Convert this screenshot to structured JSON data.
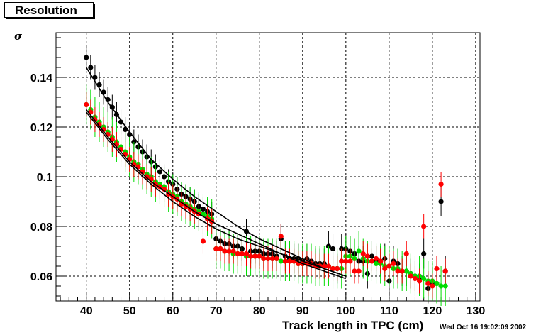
{
  "title": "Resolution",
  "stamp": "Wed Oct 16 19:02:09 2002",
  "chart_data": {
    "type": "scatter",
    "xlabel": "Track length in TPC (cm)",
    "ylabel": "σ",
    "xlim": [
      33,
      131
    ],
    "ylim": [
      0.05,
      0.158
    ],
    "grid": true,
    "x_ticks": [
      40,
      50,
      60,
      70,
      80,
      90,
      100,
      110,
      120,
      130
    ],
    "y_ticks": [
      0.06,
      0.08,
      0.1,
      0.12,
      0.14
    ],
    "y_tick_labels": [
      "0.06",
      "0.08",
      "0.1",
      "0.12",
      "0.14"
    ],
    "series": [
      {
        "color": "#000000",
        "x": [
          40,
          41,
          42,
          43,
          44,
          45,
          46,
          47,
          48,
          49,
          50,
          51,
          52,
          53,
          54,
          55,
          56,
          57,
          58,
          59,
          60,
          61,
          62,
          63,
          64,
          65,
          66,
          67,
          68,
          69,
          70,
          71,
          72,
          73,
          74,
          75,
          76,
          77,
          78,
          79,
          80,
          81,
          82,
          83,
          84,
          85,
          86,
          87,
          88,
          89,
          90,
          91,
          92,
          93,
          94,
          95,
          96,
          97,
          98,
          99,
          100,
          101,
          102,
          103,
          104,
          105,
          106,
          107,
          108,
          109,
          110,
          111,
          112,
          113,
          114,
          115,
          116,
          117,
          118,
          119,
          120,
          121,
          122,
          123
        ],
        "y": [
          0.148,
          0.144,
          0.14,
          0.137,
          0.134,
          0.131,
          0.128,
          0.125,
          0.122,
          0.119,
          0.117,
          0.114,
          0.112,
          0.11,
          0.108,
          0.106,
          0.104,
          0.102,
          0.1,
          0.098,
          0.097,
          0.095,
          0.093,
          0.092,
          0.091,
          0.09,
          0.088,
          0.087,
          0.086,
          0.085,
          0.075,
          0.074,
          0.073,
          0.073,
          0.072,
          0.072,
          0.071,
          0.078,
          0.07,
          0.07,
          0.07,
          0.069,
          0.069,
          0.069,
          0.068,
          0.075,
          0.068,
          0.067,
          0.067,
          0.067,
          0.066,
          0.067,
          0.066,
          0.065,
          0.065,
          0.065,
          0.072,
          0.071,
          0.063,
          0.071,
          0.071,
          0.07,
          0.069,
          0.066,
          0.066,
          0.061,
          0.068,
          0.066,
          0.066,
          0.067,
          0.058,
          0.066,
          0.065,
          0.062,
          0.062,
          0.061,
          0.06,
          0.059,
          0.069,
          0.055,
          0.057,
          0.057,
          0.09,
          0.062
        ],
        "err": [
          0.005,
          0.005,
          0.005,
          0.005,
          0.005,
          0.005,
          0.005,
          0.005,
          0.005,
          0.005,
          0.005,
          0.005,
          0.005,
          0.005,
          0.005,
          0.005,
          0.005,
          0.005,
          0.005,
          0.005,
          0.005,
          0.005,
          0.005,
          0.005,
          0.005,
          0.005,
          0.005,
          0.005,
          0.005,
          0.005,
          0.005,
          0.005,
          0.005,
          0.005,
          0.005,
          0.005,
          0.005,
          0.005,
          0.005,
          0.005,
          0.006,
          0.006,
          0.006,
          0.006,
          0.006,
          0.006,
          0.006,
          0.006,
          0.006,
          0.006,
          0.006,
          0.006,
          0.006,
          0.006,
          0.006,
          0.006,
          0.006,
          0.006,
          0.006,
          0.006,
          0.006,
          0.006,
          0.006,
          0.006,
          0.006,
          0.006,
          0.006,
          0.006,
          0.006,
          0.006,
          0.006,
          0.006,
          0.006,
          0.006,
          0.006,
          0.006,
          0.006,
          0.006,
          0.006,
          0.006,
          0.006,
          0.006,
          0.006,
          0.006
        ]
      },
      {
        "color": "#00dd00",
        "x": [
          40,
          41,
          42,
          43,
          44,
          45,
          46,
          47,
          48,
          49,
          50,
          51,
          52,
          53,
          54,
          55,
          56,
          57,
          58,
          59,
          60,
          61,
          62,
          63,
          64,
          65,
          66,
          67,
          68,
          69,
          70,
          71,
          72,
          73,
          74,
          75,
          76,
          77,
          78,
          79,
          80,
          81,
          82,
          83,
          84,
          85,
          86,
          87,
          88,
          89,
          90,
          91,
          92,
          93,
          94,
          95,
          96,
          97,
          98,
          99,
          100,
          101,
          102,
          103,
          104,
          105,
          106,
          107,
          108,
          109,
          110,
          111,
          112,
          113,
          114,
          115,
          116,
          117,
          118,
          119,
          120,
          121,
          122,
          123
        ],
        "y": [
          0.129,
          0.127,
          0.124,
          0.122,
          0.12,
          0.118,
          0.116,
          0.114,
          0.112,
          0.11,
          0.108,
          0.106,
          0.105,
          0.103,
          0.101,
          0.1,
          0.098,
          0.097,
          0.096,
          0.094,
          0.093,
          0.092,
          0.09,
          0.089,
          0.088,
          0.087,
          0.086,
          0.085,
          0.084,
          0.083,
          0.071,
          0.071,
          0.07,
          0.07,
          0.069,
          0.069,
          0.069,
          0.068,
          0.068,
          0.068,
          0.068,
          0.067,
          0.067,
          0.067,
          0.067,
          0.066,
          0.066,
          0.066,
          0.066,
          0.065,
          0.065,
          0.065,
          0.065,
          0.064,
          0.064,
          0.064,
          0.064,
          0.063,
          0.063,
          0.063,
          0.068,
          0.068,
          0.067,
          0.07,
          0.067,
          0.066,
          0.066,
          0.065,
          0.065,
          0.064,
          0.064,
          0.063,
          0.063,
          0.062,
          0.062,
          0.061,
          0.06,
          0.06,
          0.059,
          0.058,
          0.058,
          0.057,
          0.056,
          0.056
        ],
        "err": [
          0.008,
          0.008,
          0.008,
          0.008,
          0.008,
          0.008,
          0.008,
          0.008,
          0.008,
          0.008,
          0.008,
          0.008,
          0.008,
          0.008,
          0.008,
          0.008,
          0.008,
          0.008,
          0.008,
          0.008,
          0.008,
          0.008,
          0.008,
          0.008,
          0.008,
          0.008,
          0.008,
          0.008,
          0.008,
          0.008,
          0.008,
          0.008,
          0.008,
          0.008,
          0.008,
          0.008,
          0.008,
          0.008,
          0.008,
          0.008,
          0.008,
          0.008,
          0.008,
          0.008,
          0.008,
          0.008,
          0.008,
          0.008,
          0.008,
          0.008,
          0.008,
          0.008,
          0.008,
          0.008,
          0.008,
          0.008,
          0.008,
          0.008,
          0.008,
          0.008,
          0.008,
          0.008,
          0.008,
          0.008,
          0.008,
          0.008,
          0.008,
          0.008,
          0.008,
          0.008,
          0.008,
          0.008,
          0.008,
          0.008,
          0.008,
          0.008,
          0.008,
          0.008,
          0.008,
          0.008,
          0.008,
          0.008,
          0.008,
          0.008
        ]
      },
      {
        "color": "#ff0000",
        "x": [
          40,
          41,
          42,
          43,
          44,
          45,
          46,
          47,
          48,
          49,
          50,
          51,
          52,
          53,
          54,
          55,
          56,
          57,
          58,
          59,
          60,
          61,
          62,
          63,
          64,
          65,
          66,
          67,
          68,
          69,
          70,
          71,
          72,
          73,
          74,
          75,
          76,
          77,
          78,
          79,
          80,
          81,
          82,
          83,
          84,
          85,
          86,
          87,
          88,
          89,
          90,
          91,
          92,
          93,
          94,
          95,
          96,
          97,
          98,
          99,
          100,
          101,
          102,
          103,
          104,
          105,
          106,
          107,
          108,
          109,
          110,
          111,
          112,
          113,
          114,
          115,
          116,
          117,
          118,
          119,
          120,
          121,
          122,
          123
        ],
        "y": [
          0.129,
          0.126,
          0.123,
          0.121,
          0.119,
          0.117,
          0.115,
          0.113,
          0.111,
          0.109,
          0.107,
          0.105,
          0.104,
          0.102,
          0.1,
          0.099,
          0.097,
          0.096,
          0.095,
          0.093,
          0.092,
          0.091,
          0.089,
          0.088,
          0.087,
          0.086,
          0.085,
          0.074,
          0.083,
          0.082,
          0.071,
          0.071,
          0.07,
          0.07,
          0.07,
          0.069,
          0.069,
          0.069,
          0.068,
          0.068,
          0.068,
          0.067,
          0.067,
          0.067,
          0.067,
          0.076,
          0.066,
          0.066,
          0.066,
          0.065,
          0.065,
          0.065,
          0.065,
          0.064,
          0.064,
          0.064,
          0.064,
          0.063,
          0.063,
          0.066,
          0.066,
          0.066,
          0.062,
          0.062,
          0.069,
          0.068,
          0.066,
          0.067,
          0.066,
          0.063,
          0.064,
          0.065,
          0.062,
          0.062,
          0.069,
          0.06,
          0.059,
          0.058,
          0.08,
          0.057,
          0.056,
          0.063,
          0.097,
          0.062
        ],
        "err": [
          0.005,
          0.005,
          0.005,
          0.005,
          0.005,
          0.005,
          0.005,
          0.005,
          0.005,
          0.005,
          0.005,
          0.005,
          0.005,
          0.005,
          0.005,
          0.005,
          0.005,
          0.005,
          0.005,
          0.005,
          0.005,
          0.005,
          0.005,
          0.005,
          0.005,
          0.005,
          0.005,
          0.005,
          0.005,
          0.005,
          0.005,
          0.005,
          0.005,
          0.005,
          0.005,
          0.005,
          0.005,
          0.005,
          0.005,
          0.005,
          0.005,
          0.005,
          0.005,
          0.005,
          0.005,
          0.005,
          0.005,
          0.005,
          0.005,
          0.005,
          0.005,
          0.005,
          0.005,
          0.005,
          0.005,
          0.005,
          0.005,
          0.005,
          0.005,
          0.005,
          0.005,
          0.005,
          0.005,
          0.005,
          0.005,
          0.005,
          0.005,
          0.005,
          0.005,
          0.005,
          0.005,
          0.005,
          0.005,
          0.005,
          0.005,
          0.005,
          0.005,
          0.005,
          0.005,
          0.005,
          0.005,
          0.005,
          0.005,
          0.005
        ]
      }
    ],
    "fits": [
      {
        "x": [
          40,
          45,
          50,
          55,
          60,
          65,
          70,
          75,
          80,
          85,
          90,
          95,
          100
        ],
        "y": [
          0.144,
          0.13,
          0.118,
          0.107,
          0.099,
          0.092,
          0.086,
          0.08,
          0.075,
          0.071,
          0.067,
          0.063,
          0.06
        ]
      },
      {
        "x": [
          40,
          45,
          50,
          55,
          60,
          65,
          70,
          75,
          80,
          85,
          90,
          95,
          100
        ],
        "y": [
          0.127,
          0.116,
          0.106,
          0.098,
          0.092,
          0.086,
          0.081,
          0.077,
          0.073,
          0.069,
          0.065,
          0.062,
          0.059
        ]
      },
      {
        "x": [
          40,
          45,
          50,
          55,
          60,
          65,
          70,
          75,
          80,
          85,
          90,
          95,
          100
        ],
        "y": [
          0.126,
          0.115,
          0.105,
          0.097,
          0.09,
          0.084,
          0.079,
          0.075,
          0.072,
          0.069,
          0.066,
          0.063,
          0.06
        ]
      }
    ]
  }
}
